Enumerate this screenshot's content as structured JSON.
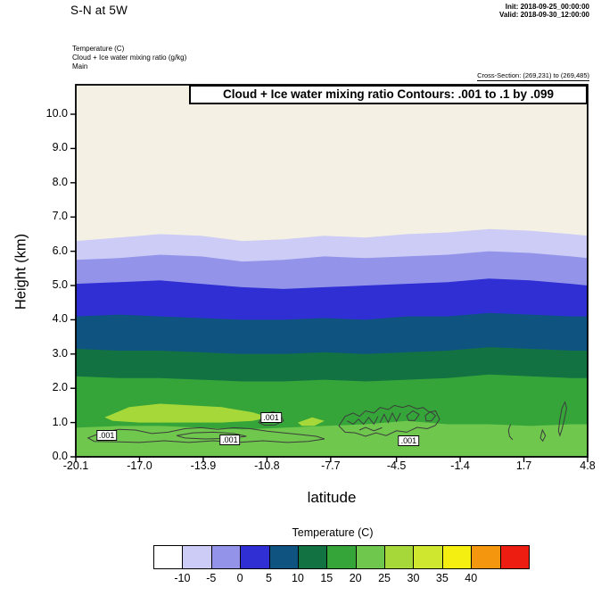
{
  "header": {
    "title": "S-N at 5W",
    "init": "Init: 2018-09-25_00:00:00",
    "valid": "Valid: 2018-09-30_12:00:00",
    "field1": "Temperature   (C)",
    "field2": "Cloud + Ice water mixing ratio   (g/kg)",
    "field3": "Main",
    "cross_section": "Cross-Section: (269,231) to (269,485)"
  },
  "chart_data": {
    "type": "contour-cross-section",
    "title": "Cloud + Ice water mixing ratio Contours: .001 to .1 by .099",
    "xlabel": "latitude",
    "ylabel": "Height (km)",
    "xlim": [
      -20.1,
      4.8
    ],
    "ylim": [
      0,
      10.86
    ],
    "x_tick_values": [
      -20.1,
      -17.0,
      -13.9,
      -10.8,
      -7.7,
      -4.5,
      -1.4,
      1.7,
      4.8
    ],
    "x_tick_labels": [
      "-20.1",
      "-17.0",
      "-13.9",
      "-10.8",
      "-7.7",
      "-4.5",
      "-1.4",
      "1.7",
      "4.8"
    ],
    "y_tick_values": [
      0,
      1,
      2,
      3,
      4,
      5,
      6,
      7,
      8,
      9,
      10
    ],
    "y_tick_labels": [
      "0.0",
      "1.0",
      "2.0",
      "3.0",
      "4.0",
      "5.0",
      "6.0",
      "7.0",
      "8.0",
      "9.0",
      "10.0"
    ],
    "background_fill": "#f4f1e4",
    "lat_samples": [
      -20.1,
      -18,
      -16,
      -14,
      -12,
      -10,
      -8,
      -6,
      -4,
      -2,
      0,
      2,
      4,
      4.8
    ],
    "temperature_bands": [
      {
        "level_c": -10,
        "fill_below": "#ccccf6",
        "heights_km": [
          6.3,
          6.4,
          6.5,
          6.45,
          6.3,
          6.35,
          6.45,
          6.4,
          6.5,
          6.55,
          6.65,
          6.6,
          6.5,
          6.45
        ]
      },
      {
        "level_c": -5,
        "fill_below": "#9394e9",
        "heights_km": [
          5.75,
          5.8,
          5.9,
          5.85,
          5.7,
          5.75,
          5.85,
          5.8,
          5.85,
          5.9,
          6.0,
          5.95,
          5.85,
          5.8
        ]
      },
      {
        "level_c": 0,
        "fill_below": "#2f2fd3",
        "heights_km": [
          5.05,
          5.1,
          5.15,
          5.05,
          4.95,
          4.9,
          4.95,
          5.0,
          5.05,
          5.1,
          5.2,
          5.15,
          5.05,
          5.0
        ]
      },
      {
        "level_c": 5,
        "fill_below": "#0f5480",
        "heights_km": [
          4.1,
          4.15,
          4.1,
          4.05,
          4.0,
          4.0,
          4.05,
          4.0,
          4.1,
          4.1,
          4.2,
          4.15,
          4.1,
          4.1
        ]
      },
      {
        "level_c": 10,
        "fill_below": "#127242",
        "heights_km": [
          3.15,
          3.1,
          3.1,
          3.05,
          3.0,
          3.0,
          3.05,
          3.0,
          3.05,
          3.1,
          3.2,
          3.15,
          3.1,
          3.1
        ]
      },
      {
        "level_c": 15,
        "fill_below": "#35a53a",
        "heights_km": [
          2.35,
          2.3,
          2.3,
          2.25,
          2.2,
          2.2,
          2.25,
          2.2,
          2.25,
          2.3,
          2.4,
          2.35,
          2.3,
          2.3
        ]
      },
      {
        "level_c": 20,
        "fill_below": "#6fc84d",
        "heights_km": [
          0.85,
          0.9,
          0.9,
          0.85,
          0.8,
          0.85,
          0.9,
          0.95,
          1.05,
          0.95,
          0.95,
          0.9,
          0.95,
          0.95
        ]
      }
    ],
    "warm_patches": [
      {
        "fill": "#a5d838",
        "points": [
          [
            -18.7,
            1.15
          ],
          [
            -17.5,
            1.45
          ],
          [
            -16,
            1.55
          ],
          [
            -14.5,
            1.5
          ],
          [
            -13,
            1.45
          ],
          [
            -11.5,
            1.3
          ],
          [
            -10.7,
            1.15
          ],
          [
            -11.5,
            1.05
          ],
          [
            -13,
            1.0
          ],
          [
            -15,
            1.0
          ],
          [
            -17,
            1.0
          ],
          [
            -18.3,
            1.05
          ]
        ]
      },
      {
        "fill": "#a5d838",
        "points": [
          [
            -9.3,
            1.0
          ],
          [
            -8.6,
            1.15
          ],
          [
            -8.0,
            1.05
          ],
          [
            -8.5,
            0.9
          ],
          [
            -9.1,
            0.9
          ]
        ]
      }
    ],
    "cloud_contours": {
      "level_label": ".001",
      "stroke": "#3c3c3c",
      "closed_paths": [
        [
          [
            -19.5,
            0.55
          ],
          [
            -18.8,
            0.72
          ],
          [
            -18.0,
            0.8
          ],
          [
            -17.2,
            0.78
          ],
          [
            -16.4,
            0.68
          ],
          [
            -15.6,
            0.72
          ],
          [
            -14.8,
            0.82
          ],
          [
            -14.0,
            0.85
          ],
          [
            -13.2,
            0.8
          ],
          [
            -12.4,
            0.85
          ],
          [
            -11.6,
            0.82
          ],
          [
            -10.8,
            0.75
          ],
          [
            -10.0,
            0.7
          ],
          [
            -9.2,
            0.65
          ],
          [
            -8.4,
            0.6
          ],
          [
            -8.0,
            0.52
          ],
          [
            -8.8,
            0.45
          ],
          [
            -9.8,
            0.42
          ],
          [
            -11.0,
            0.47
          ],
          [
            -12.2,
            0.42
          ],
          [
            -13.4,
            0.47
          ],
          [
            -14.6,
            0.42
          ],
          [
            -15.8,
            0.47
          ],
          [
            -17.0,
            0.42
          ],
          [
            -18.2,
            0.44
          ],
          [
            -19.2,
            0.45
          ]
        ],
        [
          [
            -15.2,
            0.62
          ],
          [
            -14.4,
            0.7
          ],
          [
            -13.4,
            0.72
          ],
          [
            -12.4,
            0.68
          ],
          [
            -11.8,
            0.6
          ],
          [
            -12.6,
            0.54
          ],
          [
            -13.8,
            0.52
          ],
          [
            -14.8,
            0.55
          ]
        ],
        [
          [
            -11.2,
            1.0
          ],
          [
            -11.0,
            1.22
          ],
          [
            -10.5,
            1.32
          ],
          [
            -10.1,
            1.2
          ],
          [
            -10.0,
            1.05
          ],
          [
            -10.4,
            0.93
          ],
          [
            -10.9,
            0.92
          ]
        ],
        [
          [
            -7.3,
            0.9
          ],
          [
            -7.0,
            1.18
          ],
          [
            -6.6,
            1.28
          ],
          [
            -6.3,
            1.18
          ],
          [
            -6.0,
            1.34
          ],
          [
            -5.6,
            1.28
          ],
          [
            -5.3,
            1.44
          ],
          [
            -4.9,
            1.38
          ],
          [
            -4.6,
            1.5
          ],
          [
            -4.2,
            1.44
          ],
          [
            -3.9,
            1.5
          ],
          [
            -3.5,
            1.4
          ],
          [
            -3.2,
            1.44
          ],
          [
            -2.9,
            1.3
          ],
          [
            -2.6,
            1.34
          ],
          [
            -2.4,
            1.1
          ],
          [
            -2.6,
            0.92
          ],
          [
            -3.0,
            0.82
          ],
          [
            -3.5,
            0.86
          ],
          [
            -4.0,
            0.72
          ],
          [
            -4.5,
            0.76
          ],
          [
            -5.0,
            0.62
          ],
          [
            -5.5,
            0.7
          ],
          [
            -6.0,
            0.6
          ],
          [
            -6.5,
            0.7
          ],
          [
            -7.0,
            0.72
          ]
        ],
        [
          [
            -4.0,
            1.2
          ],
          [
            -3.7,
            1.34
          ],
          [
            -3.4,
            1.24
          ],
          [
            -3.6,
            1.06
          ],
          [
            -3.9,
            1.06
          ]
        ],
        [
          [
            -3.1,
            1.2
          ],
          [
            -2.85,
            1.32
          ],
          [
            -2.6,
            1.2
          ],
          [
            -2.8,
            1.05
          ],
          [
            -3.05,
            1.05
          ]
        ],
        [
          [
            2.5,
            0.55
          ],
          [
            2.6,
            0.78
          ],
          [
            2.75,
            0.62
          ],
          [
            2.62,
            0.46
          ]
        ],
        [
          [
            3.38,
            0.75
          ],
          [
            3.45,
            1.1
          ],
          [
            3.55,
            1.42
          ],
          [
            3.7,
            1.6
          ],
          [
            3.78,
            1.42
          ],
          [
            3.65,
            1.05
          ],
          [
            3.55,
            0.8
          ],
          [
            3.45,
            0.62
          ]
        ]
      ],
      "open_paths": [
        [
          [
            -6.9,
            1.05
          ],
          [
            -6.6,
            0.95
          ],
          [
            -6.35,
            1.1
          ],
          [
            -6.1,
            0.95
          ],
          [
            -5.85,
            1.15
          ],
          [
            -5.6,
            0.95
          ],
          [
            -5.4,
            1.18
          ]
        ],
        [
          [
            -5.3,
            1.0
          ],
          [
            -5.1,
            1.24
          ],
          [
            -4.9,
            1.0
          ],
          [
            -4.7,
            1.28
          ],
          [
            -4.5,
            1.04
          ],
          [
            -4.3,
            1.28
          ]
        ],
        [
          [
            -6.3,
            0.78
          ],
          [
            -6.0,
            0.86
          ],
          [
            -5.6,
            0.76
          ],
          [
            -5.2,
            0.85
          ]
        ],
        [
          [
            1.05,
            0.95
          ],
          [
            0.95,
            0.78
          ],
          [
            1.0,
            0.6
          ],
          [
            1.15,
            0.5
          ]
        ]
      ],
      "labels": [
        {
          "lat": -18.6,
          "km": 0.62,
          "text": ".001"
        },
        {
          "lat": -12.6,
          "km": 0.5,
          "text": ".001"
        },
        {
          "lat": -10.6,
          "km": 1.15,
          "text": ".001"
        },
        {
          "lat": -3.9,
          "km": 0.47,
          "text": ".001"
        }
      ]
    }
  },
  "colorbar": {
    "title": "Temperature   (C)",
    "colors": [
      "#ffffff",
      "#ccccf6",
      "#9394e9",
      "#2f2fd3",
      "#0f5480",
      "#127242",
      "#35a53a",
      "#6fc84d",
      "#a5d838",
      "#cfe72e",
      "#f4ef10",
      "#f5960f",
      "#ee1d12"
    ],
    "tick_labels": [
      "-10",
      "-5",
      "0",
      "5",
      "10",
      "15",
      "20",
      "25",
      "30",
      "35",
      "40"
    ]
  }
}
